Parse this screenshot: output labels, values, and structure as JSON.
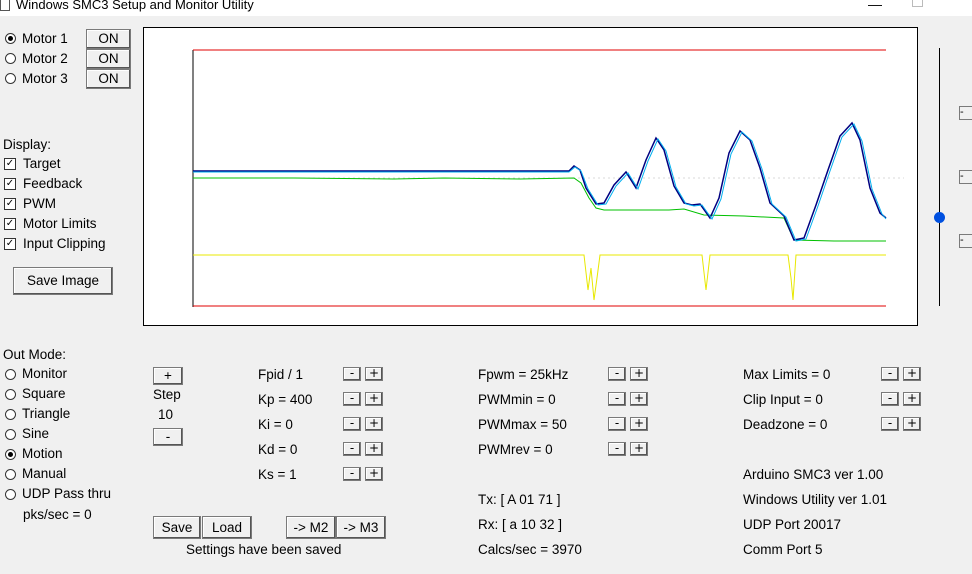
{
  "window": {
    "title": "Windows SMC3 Setup and Monitor Utility"
  },
  "motors": [
    {
      "label": "Motor 1",
      "selected": true,
      "button": "ON"
    },
    {
      "label": "Motor 2",
      "selected": false,
      "button": "ON"
    },
    {
      "label": "Motor 3",
      "selected": false,
      "button": "ON"
    }
  ],
  "display": {
    "heading": "Display:",
    "options": [
      {
        "label": "Target",
        "checked": true
      },
      {
        "label": "Feedback",
        "checked": true
      },
      {
        "label": "PWM",
        "checked": true
      },
      {
        "label": "Motor Limits",
        "checked": true
      },
      {
        "label": "Input Clipping",
        "checked": true
      }
    ],
    "save_image": "Save Image"
  },
  "out_mode": {
    "heading": "Out Mode:",
    "options": [
      {
        "label": "Monitor",
        "selected": false
      },
      {
        "label": "Square",
        "selected": false
      },
      {
        "label": "Triangle",
        "selected": false
      },
      {
        "label": "Sine",
        "selected": false
      },
      {
        "label": "Motion",
        "selected": true
      },
      {
        "label": "Manual",
        "selected": false
      },
      {
        "label": "UDP Pass thru",
        "selected": false
      }
    ],
    "pks": "pks/sec = 0"
  },
  "step": {
    "plus": "+",
    "label": "Step",
    "value": "10",
    "minus": "-"
  },
  "pid": [
    "Fpid / 1",
    "Kp = 400",
    "Ki = 0",
    "Kd = 0",
    "Ks = 1"
  ],
  "pwm": [
    "Fpwm = 25kHz",
    "PWMmin = 0",
    "PWMmax = 50",
    "PWMrev = 0"
  ],
  "limits": [
    "Max Limits = 0",
    "Clip Input = 0",
    "Deadzone = 0"
  ],
  "adj": {
    "minus": "-",
    "plus": "+"
  },
  "buttons": {
    "save": "Save",
    "load": "Load",
    "to_m2": "-> M2",
    "to_m3": "-> M3"
  },
  "status": "Settings have been saved",
  "comms": {
    "tx": "Tx: [ A 01 71 ]",
    "rx": "Rx: [ a 10 32 ]",
    "calcs": "Calcs/sec = 3970"
  },
  "info": [
    "Arduino SMC3 ver 1.00",
    "Windows Utility ver 1.01",
    "UDP Port 20017",
    "Comm Port 5"
  ],
  "colors": {
    "limits": "#e00000",
    "target": "#000080",
    "feedback": "#00b0f0",
    "pwm": "#00c000",
    "clipping": "#e8e800"
  }
}
